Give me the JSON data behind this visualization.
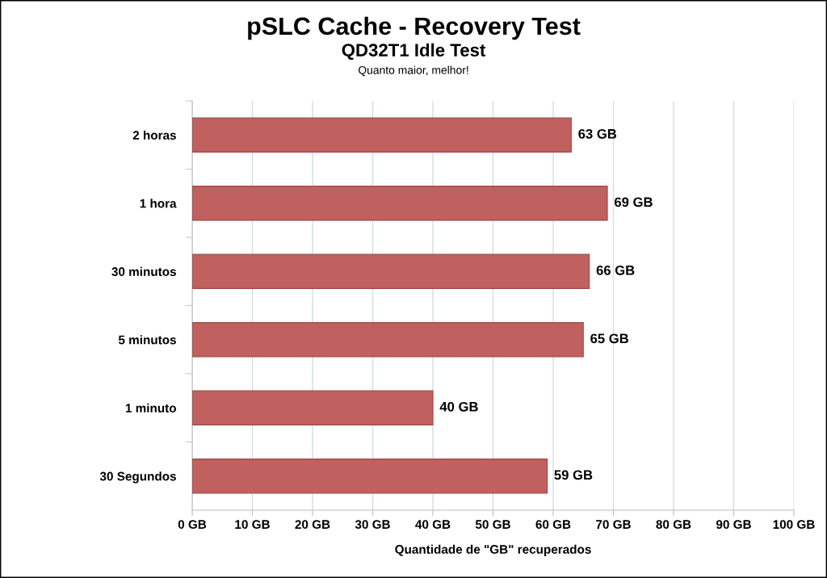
{
  "chart_data": {
    "type": "bar",
    "orientation": "horizontal",
    "title": "pSLC Cache - Recovery Test",
    "subtitle": "QD32T1 Idle Test",
    "annotations": [
      "Quanto maior, melhor!"
    ],
    "xlabel": "Quantidade de \"GB\" recuperados",
    "categories": [
      "2 horas",
      "1 hora",
      "30 minutos",
      "5 minutos",
      "1 minuto",
      "30 Segundos"
    ],
    "values": [
      63,
      69,
      66,
      65,
      40,
      59
    ],
    "value_labels": [
      "63 GB",
      "69 GB",
      "66 GB",
      "65 GB",
      "40 GB",
      "59 GB"
    ],
    "color": "#c0605f",
    "xlim": [
      0,
      100
    ],
    "xticks": [
      {
        "value": 0,
        "label": "0 GB"
      },
      {
        "value": 10,
        "label": "10 GB"
      },
      {
        "value": 20,
        "label": "20 GB"
      },
      {
        "value": 30,
        "label": "30 GB"
      },
      {
        "value": 40,
        "label": "40 GB"
      },
      {
        "value": 50,
        "label": "50 GB"
      },
      {
        "value": 60,
        "label": "60 GB"
      },
      {
        "value": 70,
        "label": "70 GB"
      },
      {
        "value": 80,
        "label": "80 GB"
      },
      {
        "value": 90,
        "label": "90 GB"
      },
      {
        "value": 100,
        "label": "100 GB"
      }
    ],
    "grid": "x",
    "legend": false
  }
}
